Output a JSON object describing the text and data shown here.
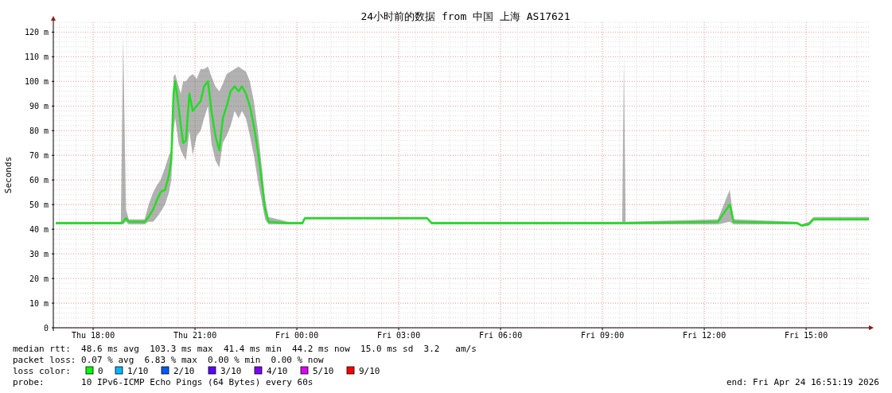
{
  "chart_data": {
    "type": "line",
    "title": "24小时前的数据 from 中国 上海 AS17621",
    "ylabel": "Seconds",
    "xlim": [
      "2026-04-23T16:51",
      "2026-04-24T16:51"
    ],
    "xticks": [
      {
        "value": "2026-04-23T18:00",
        "label": "Thu 18:00"
      },
      {
        "value": "2026-04-23T21:00",
        "label": "Thu 21:00"
      },
      {
        "value": "2026-04-24T00:00",
        "label": "Fri 00:00"
      },
      {
        "value": "2026-04-24T03:00",
        "label": "Fri 03:00"
      },
      {
        "value": "2026-04-24T06:00",
        "label": "Fri 06:00"
      },
      {
        "value": "2026-04-24T09:00",
        "label": "Fri 09:00"
      },
      {
        "value": "2026-04-24T12:00",
        "label": "Fri 12:00"
      },
      {
        "value": "2026-04-24T15:00",
        "label": "Fri 15:00"
      }
    ],
    "ylim": [
      0,
      124
    ],
    "yticks": [
      0,
      {
        "value": 10,
        "label": "10 m"
      },
      {
        "value": 20,
        "label": "20 m"
      },
      {
        "value": 30,
        "label": "30 m"
      },
      {
        "value": 40,
        "label": "40 m"
      },
      {
        "value": 50,
        "label": "50 m"
      },
      {
        "value": 60,
        "label": "60 m"
      },
      {
        "value": 70,
        "label": "70 m"
      },
      {
        "value": 80,
        "label": "80 m"
      },
      {
        "value": 90,
        "label": "90 m"
      },
      {
        "value": 100,
        "label": "100 m"
      },
      {
        "value": 110,
        "label": "110 m"
      },
      {
        "value": 120,
        "label": "120 m"
      }
    ],
    "grid": true,
    "marker": "none",
    "line_style": "solid",
    "series": [
      {
        "color": "#22dd22",
        "x": [
          "2026-04-23T16:54",
          "2026-04-23T17:39",
          "2026-04-23T18:49",
          "2026-04-23T18:53",
          "2026-04-23T18:58",
          "2026-04-23T19:03",
          "2026-04-23T19:31",
          "2026-04-23T19:38",
          "2026-04-23T19:46",
          "2026-04-23T19:53",
          "2026-04-23T19:59",
          "2026-04-23T20:07",
          "2026-04-23T20:14",
          "2026-04-23T20:18",
          "2026-04-23T20:22",
          "2026-04-23T20:25",
          "2026-04-23T20:31",
          "2026-04-23T20:35",
          "2026-04-23T20:39",
          "2026-04-23T20:44",
          "2026-04-23T20:50",
          "2026-04-23T20:56",
          "2026-04-23T21:03",
          "2026-04-23T21:10",
          "2026-04-23T21:16",
          "2026-04-23T21:23",
          "2026-04-23T21:29",
          "2026-04-23T21:36",
          "2026-04-23T21:43",
          "2026-04-23T21:49",
          "2026-04-23T21:56",
          "2026-04-23T22:03",
          "2026-04-23T22:10",
          "2026-04-23T22:17",
          "2026-04-23T22:23",
          "2026-04-23T22:30",
          "2026-04-23T22:37",
          "2026-04-23T22:44",
          "2026-04-23T22:51",
          "2026-04-23T22:55",
          "2026-04-23T23:04",
          "2026-04-23T23:10",
          "2026-04-23T23:44",
          "2026-04-24T00:10",
          "2026-04-24T00:14",
          "2026-04-24T01:51",
          "2026-04-24T03:50",
          "2026-04-24T03:58",
          "2026-04-24T07:43",
          "2026-04-24T09:35",
          "2026-04-24T09:38",
          "2026-04-24T09:41",
          "2026-04-24T12:24",
          "2026-04-24T12:45",
          "2026-04-24T12:52",
          "2026-04-24T14:44",
          "2026-04-24T14:52",
          "2026-04-24T15:05",
          "2026-04-24T15:13",
          "2026-04-24T16:51"
        ],
        "values": [
          42.5,
          42.5,
          42.5,
          43,
          44.5,
          43,
          43,
          45,
          48,
          52,
          55,
          56,
          62,
          68,
          95,
          100,
          90,
          82,
          75,
          76,
          95,
          88,
          90,
          92,
          98,
          100,
          88,
          78,
          72,
          85,
          90,
          96,
          98,
          96,
          98,
          95,
          90,
          82,
          72,
          65,
          48,
          43,
          42.5,
          42.5,
          44.5,
          44.5,
          44.5,
          42.5,
          42.5,
          42.5,
          42.5,
          42.5,
          43,
          50,
          43,
          42.5,
          41.5,
          42,
          44,
          44
        ],
        "lower": [
          42,
          42,
          42,
          42,
          43,
          42,
          42,
          43,
          43,
          45,
          47,
          50,
          55,
          60,
          80,
          85,
          75,
          72,
          70,
          68,
          80,
          70,
          78,
          80,
          85,
          90,
          75,
          68,
          65,
          75,
          78,
          82,
          88,
          85,
          88,
          85,
          78,
          70,
          60,
          55,
          44,
          42,
          42,
          42,
          44,
          44,
          44,
          42,
          42,
          42,
          42,
          42,
          42,
          43,
          42,
          42,
          41,
          41.5,
          43.5,
          43.5
        ],
        "upper": [
          43,
          43,
          43,
          118,
          48,
          44,
          44,
          50,
          55,
          58,
          60,
          65,
          70,
          72,
          102,
          103,
          98,
          95,
          100,
          100,
          102,
          103,
          101,
          105,
          105,
          106,
          102,
          98,
          96,
          99,
          103,
          104,
          105,
          106,
          105,
          104,
          100,
          92,
          80,
          72,
          52,
          45,
          43,
          43,
          45,
          45,
          45,
          43,
          43,
          43,
          110,
          43,
          44,
          56,
          44,
          43,
          42,
          43,
          45,
          45
        ]
      }
    ],
    "annotations": [
      "median rtt:  48.6 ms avg  103.3 ms max  41.4 ms min  44.2 ms now  15.0 ms sd  3.2   am/s",
      "packet loss: 0.07 % avg  6.83 % max  0.00 % min  0.00 % now",
      "loss color:",
      "0",
      "1/10",
      "2/10",
      "3/10",
      "4/10",
      "5/10",
      "9/10",
      "probe:       10 IPv6-ICMP Echo Pings (64 Bytes) every 60s",
      "end: Fri Apr 24 16:51:19 2026"
    ]
  }
}
